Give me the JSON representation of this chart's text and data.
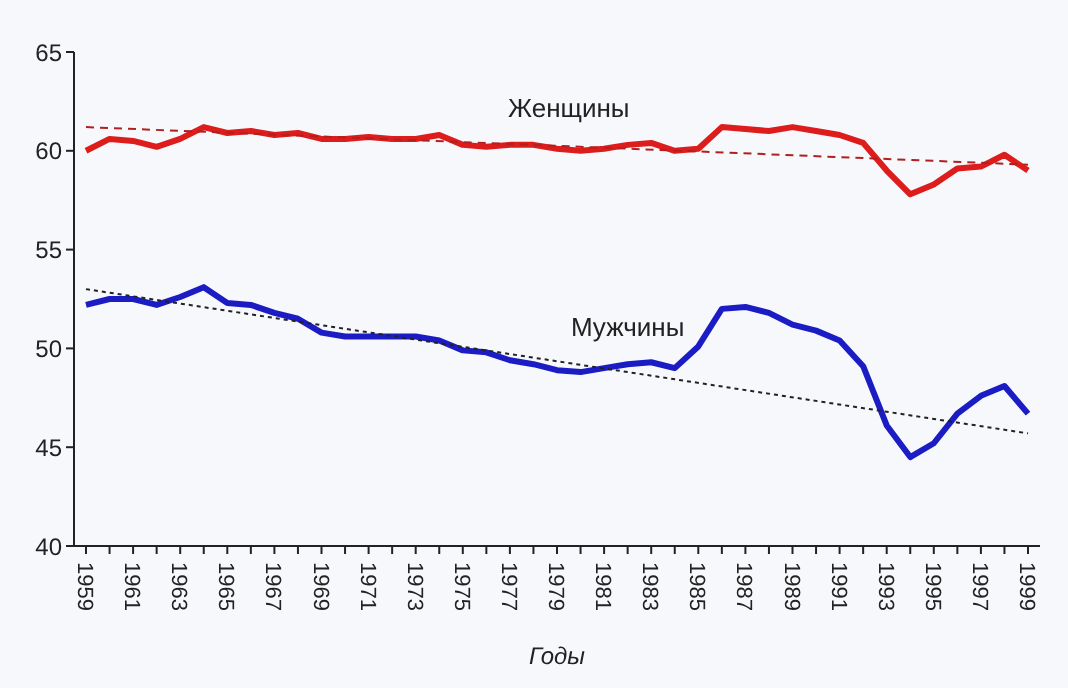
{
  "chart_data": {
    "type": "line",
    "xlabel": "Годы",
    "categories": [
      "1959",
      null,
      "1961",
      null,
      "1963",
      null,
      "1965",
      null,
      "1967",
      null,
      "1969",
      null,
      "1971",
      null,
      "1973",
      null,
      "1975",
      null,
      "1977",
      null,
      "1979",
      null,
      "1981",
      null,
      "1983",
      null,
      "1985",
      null,
      "1987",
      null,
      "1989",
      null,
      "1991",
      null,
      "1993",
      null,
      "1995",
      null,
      "1997",
      null,
      "1999"
    ],
    "ylim": [
      40,
      65
    ],
    "yticks": [
      40,
      45,
      50,
      55,
      60,
      65
    ],
    "grid": false,
    "legend": false,
    "marker": "none",
    "series": [
      {
        "name": "Женщины",
        "color": "#dd1c1c",
        "values": [
          60.0,
          60.6,
          60.5,
          60.2,
          60.6,
          61.2,
          60.9,
          61.0,
          60.8,
          60.9,
          60.6,
          60.6,
          60.7,
          60.6,
          60.6,
          60.8,
          60.3,
          60.2,
          60.3,
          60.3,
          60.1,
          60.0,
          60.1,
          60.3,
          60.4,
          60.0,
          60.1,
          61.2,
          61.1,
          61.0,
          61.2,
          61.0,
          60.8,
          60.4,
          59.0,
          57.8,
          58.3,
          59.1,
          59.2,
          59.8,
          59.0
        ]
      },
      {
        "name": "Мужчины",
        "color": "#1c1cc4",
        "values": [
          52.2,
          52.5,
          52.5,
          52.2,
          52.6,
          53.1,
          52.3,
          52.2,
          51.8,
          51.5,
          50.8,
          50.6,
          50.6,
          50.6,
          50.6,
          50.4,
          49.9,
          49.8,
          49.4,
          49.2,
          48.9,
          48.8,
          49.0,
          49.2,
          49.3,
          49.0,
          50.1,
          52.0,
          52.1,
          51.8,
          51.2,
          50.9,
          50.4,
          49.1,
          46.1,
          44.5,
          45.2,
          46.7,
          47.6,
          48.1,
          46.7
        ]
      },
      {
        "type": "line",
        "color": "#b02020",
        "line_style": "dashed",
        "values": [
          61.2,
          null,
          null,
          null,
          null,
          null,
          null,
          null,
          null,
          null,
          null,
          null,
          null,
          null,
          null,
          null,
          null,
          null,
          null,
          null,
          null,
          null,
          null,
          null,
          null,
          null,
          null,
          null,
          null,
          null,
          null,
          null,
          null,
          null,
          null,
          null,
          null,
          null,
          null,
          null,
          59.3
        ]
      },
      {
        "type": "line",
        "color": "#222222",
        "line_style": "dotted",
        "values": [
          53.0,
          null,
          null,
          null,
          null,
          null,
          null,
          null,
          null,
          null,
          null,
          null,
          null,
          null,
          null,
          null,
          null,
          null,
          null,
          null,
          null,
          null,
          null,
          null,
          null,
          null,
          null,
          null,
          null,
          null,
          null,
          null,
          null,
          null,
          null,
          null,
          null,
          null,
          null,
          null,
          45.7
        ]
      }
    ]
  }
}
